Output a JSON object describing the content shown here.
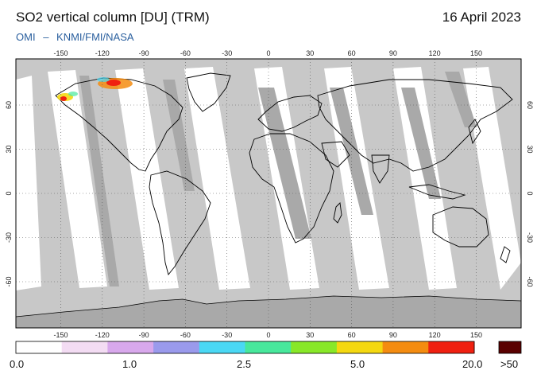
{
  "header": {
    "title": "SO2 vertical column [DU] (TRM)",
    "date": "16 April 2023",
    "instrument": "OMI",
    "separator": "–",
    "provider": "KNMI/FMI/NASA"
  },
  "map": {
    "lon_ticks": [
      "-150",
      "-120",
      "-90",
      "-60",
      "-30",
      "0",
      "30",
      "60",
      "90",
      "120",
      "150"
    ],
    "lat_ticks": [
      "60",
      "30",
      "0",
      "-30",
      "-60"
    ],
    "colors": {
      "no_data": "#c8c8c8",
      "gap_dark": "#a9a9a9",
      "coastline": "#000000",
      "gridline": "#555555"
    }
  },
  "colorbar": {
    "labels": [
      "0.0",
      "1.0",
      "2.5",
      "5.0",
      "20.0",
      ">50"
    ],
    "colors": [
      "#ffffff",
      "#f3dcf3",
      "#d8a8ec",
      "#9a9aec",
      "#4ad8f4",
      "#48e89c",
      "#88e828",
      "#f4d810",
      "#f48c10",
      "#f02010"
    ],
    "overflow_color": "#5a0000"
  }
}
